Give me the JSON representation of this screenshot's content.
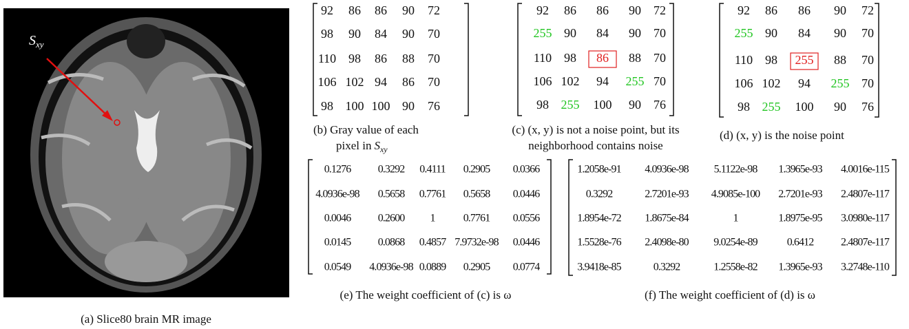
{
  "panels": {
    "a": {
      "caption": "(a) Slice80 brain MR image",
      "label": {
        "symbol": "S",
        "subscript": "xy"
      }
    },
    "b": {
      "caption": [
        "(b) Gray value of each",
        "pixel in"
      ],
      "caption_symbol": {
        "symbol": "S",
        "subscript": "xy"
      },
      "rows": [
        [
          "92",
          "86",
          "86",
          "90",
          "72"
        ],
        [
          "98",
          "90",
          "84",
          "90",
          "70"
        ],
        [
          "110",
          "98",
          "86",
          "88",
          "70"
        ],
        [
          "106",
          "102",
          "94",
          "86",
          "70"
        ],
        [
          "98",
          "100",
          "100",
          "90",
          "76"
        ]
      ]
    },
    "c": {
      "caption": [
        "(c) (x, y) is not a noise point, but its",
        "neighborhood contains noise"
      ],
      "rows": [
        [
          "92",
          "86",
          "86",
          "90",
          "72"
        ],
        [
          {
            "text": "255",
            "color": "#22c522"
          },
          "90",
          "84",
          "90",
          "70"
        ],
        [
          "110",
          "98",
          {
            "text": "86",
            "color": "#e02020",
            "boxed": true
          },
          "88",
          "70"
        ],
        [
          "106",
          "102",
          "94",
          {
            "text": "255",
            "color": "#22c522"
          },
          "70"
        ],
        [
          "98",
          {
            "text": "255",
            "color": "#22c522"
          },
          "100",
          "90",
          "76"
        ]
      ]
    },
    "d": {
      "caption": [
        "(d) (x, y) is the noise point"
      ],
      "rows": [
        [
          "92",
          "86",
          "86",
          "90",
          "72"
        ],
        [
          {
            "text": "255",
            "color": "#22c522"
          },
          "90",
          "84",
          "90",
          "70"
        ],
        [
          "110",
          "98",
          {
            "text": "255",
            "color": "#e02020",
            "boxed": true
          },
          "88",
          "70"
        ],
        [
          "106",
          "102",
          "94",
          {
            "text": "255",
            "color": "#22c522"
          },
          "70"
        ],
        [
          "98",
          {
            "text": "255",
            "color": "#22c522"
          },
          "100",
          "90",
          "76"
        ]
      ]
    },
    "e": {
      "caption": [
        "(e) The weight coefficient of (c) is ω"
      ],
      "rows": [
        [
          "0.1276",
          "0.3292",
          "0.4111",
          "0.2905",
          "0.0366"
        ],
        [
          "4.0936e-98",
          "0.5658",
          "0.7761",
          "0.5658",
          "0.0446"
        ],
        [
          "0.0046",
          "0.2600",
          "1",
          "0.7761",
          "0.0556"
        ],
        [
          "0.0145",
          "0.0868",
          "0.4857",
          "7.9732e-98",
          "0.0446"
        ],
        [
          "0.0549",
          "4.0936e-98",
          "0.0889",
          "0.2905",
          "0.0774"
        ]
      ]
    },
    "f": {
      "caption": [
        "(f) The weight coefficient of (d) is ω"
      ],
      "rows": [
        [
          "1.2058e-91",
          "4.0936e-98",
          "5.1122e-98",
          "1.3965e-93",
          "4.0016e-115"
        ],
        [
          "0.3292",
          "2.7201e-93",
          "4.9085e-100",
          "2.7201e-93",
          "2.4807e-117"
        ],
        [
          "1.8954e-72",
          "1.8675e-84",
          "1",
          "1.8975e-95",
          "3.0980e-117"
        ],
        [
          "1.5528e-76",
          "2.4098e-80",
          "9.0254e-89",
          "0.6412",
          "2.4807e-117"
        ],
        [
          "3.9418e-85",
          "0.3292",
          "1.2558e-82",
          "1.3965e-93",
          "3.2748e-110"
        ]
      ]
    }
  }
}
